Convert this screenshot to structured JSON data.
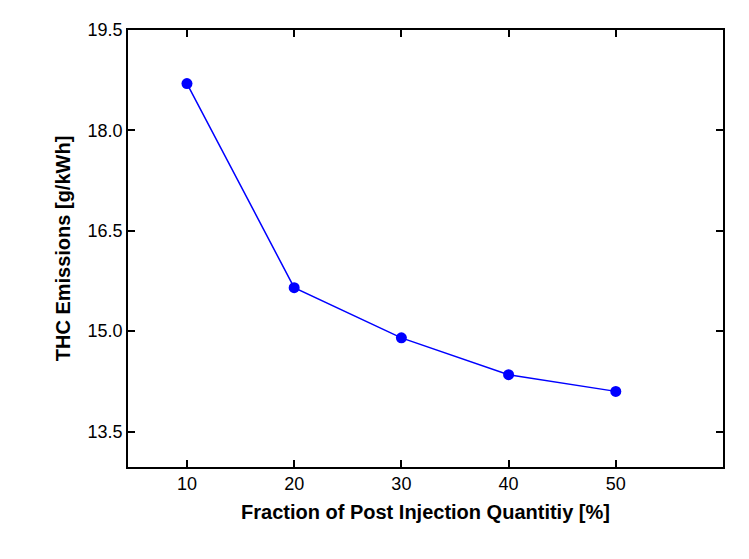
{
  "chart_data": {
    "type": "line",
    "x_label": "Fraction of Post Injection Quantitiy [%]",
    "y_label": "THC Emissions [g/kWh]",
    "x": [
      10,
      20,
      30,
      40,
      50
    ],
    "series": [
      {
        "color": "#0000ff",
        "marker": "circle",
        "values": [
          18.7,
          15.65,
          14.9,
          14.35,
          14.1
        ]
      }
    ],
    "xlim": [
      4.5,
      60
    ],
    "xticks": [
      10,
      20,
      30,
      40,
      50
    ],
    "ylim": [
      12.97,
      19.5
    ],
    "yticks": [
      13.5,
      {
        "value": 15,
        "label": "15.0"
      },
      16.5,
      {
        "value": 18,
        "label": "18.0"
      },
      19.5
    ],
    "grid": false
  }
}
